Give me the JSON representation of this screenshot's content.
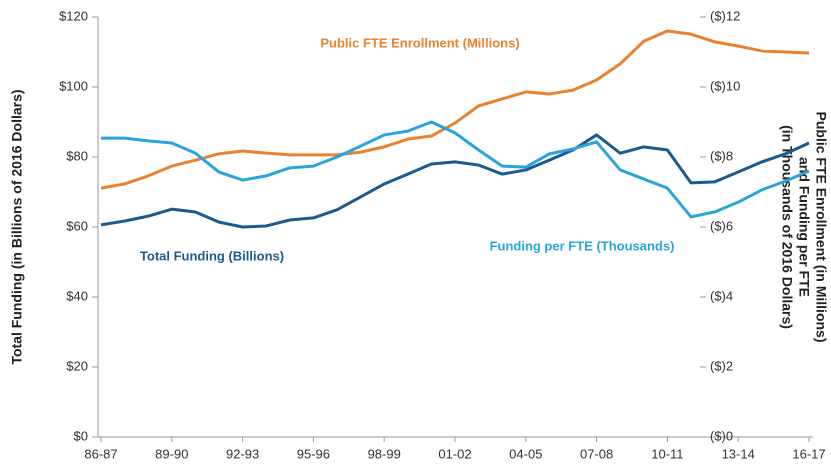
{
  "chart_data": {
    "type": "line",
    "categories": [
      "86-87",
      null,
      null,
      "89-90",
      null,
      null,
      "92-93",
      null,
      null,
      "95-96",
      null,
      null,
      "98-99",
      null,
      null,
      "01-02",
      null,
      null,
      "04-05",
      null,
      null,
      "07-08",
      null,
      null,
      "10-11",
      null,
      null,
      "13-14",
      null,
      null,
      "16-17"
    ],
    "series": [
      {
        "name": "Total Funding (Billions)",
        "color": "#1b5a8c",
        "axis": "y",
        "values": [
          60.6,
          61.7,
          63.1,
          65.1,
          64.3,
          61.4,
          60,
          60.3,
          62,
          62.6,
          64.9,
          68.6,
          72.3,
          75.1,
          78,
          78.6,
          77.7,
          75.1,
          76.3,
          79.1,
          82,
          86.3,
          81.1,
          82.9,
          82,
          72.6,
          72.9,
          75.7,
          78.6,
          80.9,
          84
        ]
      },
      {
        "name": "Public FTE Enrollment (Millions)",
        "color": "#e8822e",
        "axis": "y2",
        "values": [
          7.11,
          7.23,
          7.46,
          7.74,
          7.91,
          8.09,
          8.17,
          8.11,
          8.06,
          8.06,
          8.06,
          8.14,
          8.29,
          8.51,
          8.6,
          8.97,
          9.46,
          9.66,
          9.86,
          9.8,
          9.91,
          10.2,
          10.66,
          11.31,
          11.6,
          11.51,
          11.29,
          11.17,
          11.03,
          11,
          10.97
        ]
      },
      {
        "name": "Funding per FTE (Thousands)",
        "color": "#2ba4dc",
        "axis": "y2",
        "values": [
          8.54,
          8.54,
          8.46,
          8.4,
          8.11,
          7.57,
          7.34,
          7.46,
          7.69,
          7.74,
          8,
          8.31,
          8.63,
          8.74,
          9,
          8.69,
          8.2,
          7.74,
          7.71,
          8.09,
          8.23,
          8.43,
          7.63,
          7.37,
          7.11,
          6.29,
          6.43,
          6.71,
          7.06,
          7.31,
          7.6
        ]
      }
    ],
    "ylabel": "Total Funding (in Billions of 2016 Dollars)",
    "y2label": [
      "Public FTE Enrollment (in Millions)",
      "and Funding per FTE",
      "(in Thousands of 2016 Dollars)"
    ],
    "ylim": [
      0,
      120
    ],
    "yticks": [
      {
        "value": 0,
        "label": "$0"
      },
      {
        "value": 20,
        "label": "$20"
      },
      {
        "value": 40,
        "label": "$40"
      },
      {
        "value": 60,
        "label": "$60"
      },
      {
        "value": 80,
        "label": "$80"
      },
      {
        "value": 100,
        "label": "$100"
      },
      {
        "value": 120,
        "label": "$120"
      }
    ],
    "y2lim": [
      0,
      12
    ],
    "y2ticks": [
      {
        "value": 0,
        "label": "($)0"
      },
      {
        "value": 2,
        "label": "($)2"
      },
      {
        "value": 4,
        "label": "($)4"
      },
      {
        "value": 6,
        "label": "($)6"
      },
      {
        "value": 8,
        "label": "($)8"
      },
      {
        "value": 10,
        "label": "($)10"
      },
      {
        "value": 12,
        "label": "($)12"
      }
    ],
    "grid": false
  }
}
